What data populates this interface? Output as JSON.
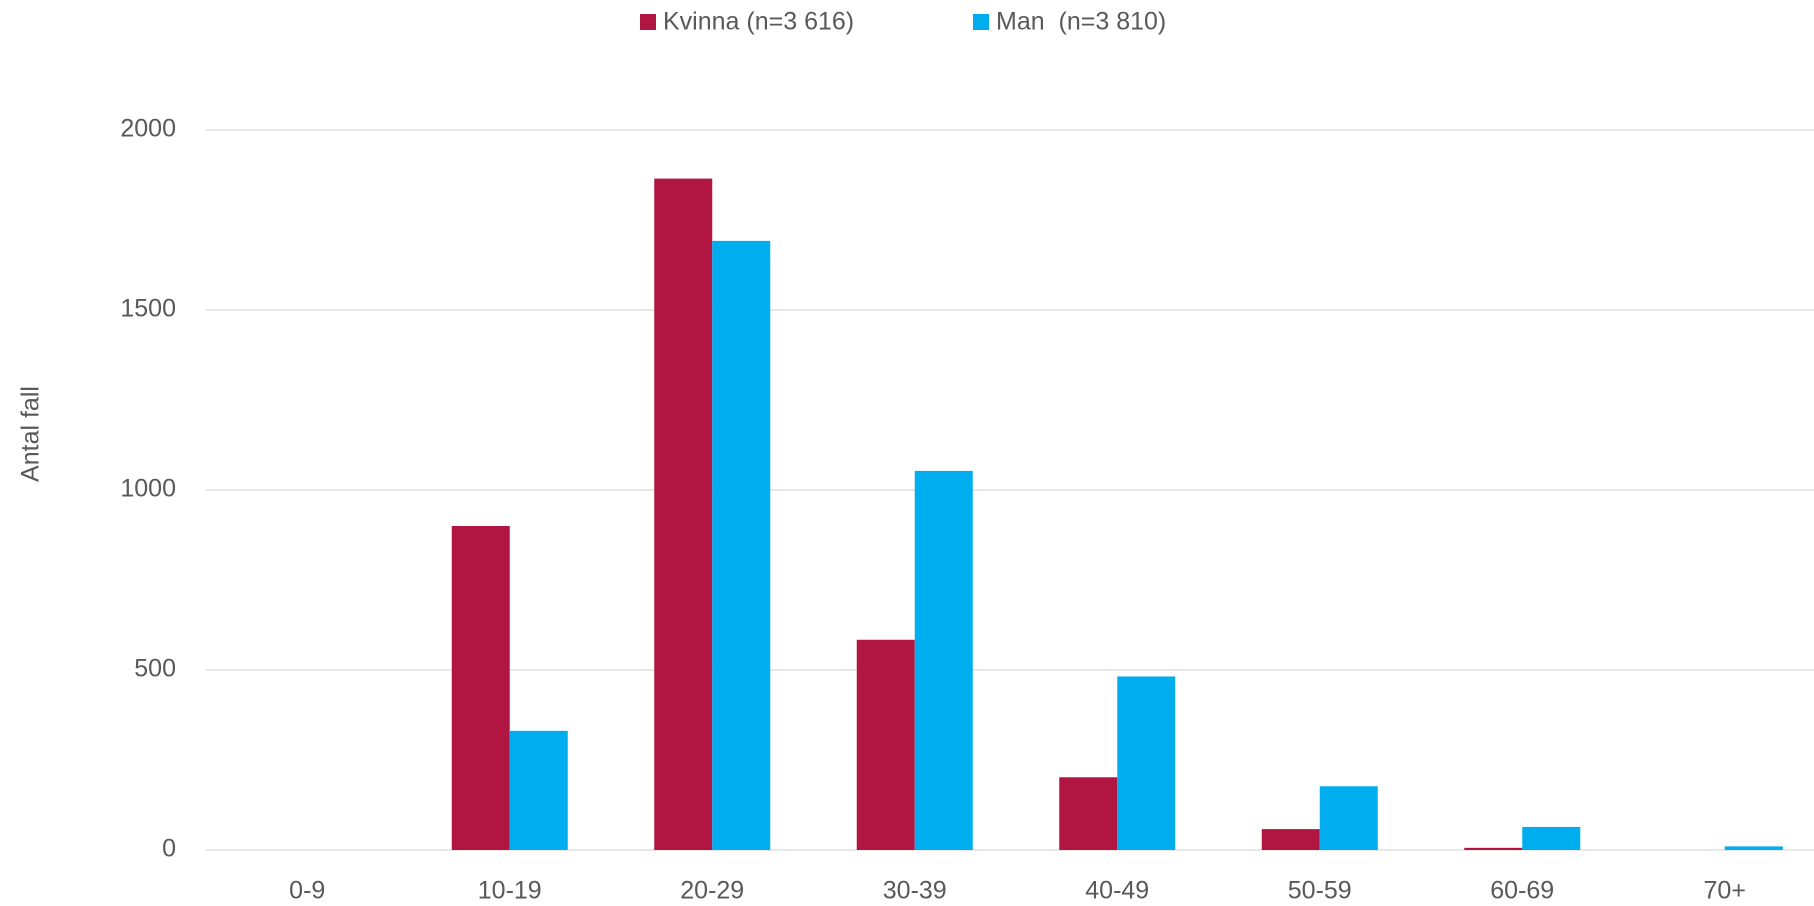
{
  "chart_data": {
    "type": "bar",
    "y_label": "Antal fall",
    "categories": [
      "0-9",
      "10-19",
      "20-29",
      "30-39",
      "40-49",
      "50-59",
      "60-69",
      "70+"
    ],
    "series": [
      {
        "name": "Kvinna (n=3 616)",
        "color": "#b01641",
        "values": [
          0,
          900,
          1865,
          584,
          202,
          58,
          6,
          0
        ]
      },
      {
        "name": "Man  (n=3 810)",
        "color": "#00adef",
        "values": [
          0,
          331,
          1692,
          1053,
          482,
          177,
          64,
          10
        ]
      }
    ],
    "ylim": [
      0,
      2000
    ],
    "yticks": [
      0,
      500,
      1000,
      1500,
      2000
    ],
    "grid": true,
    "legend": "top"
  }
}
